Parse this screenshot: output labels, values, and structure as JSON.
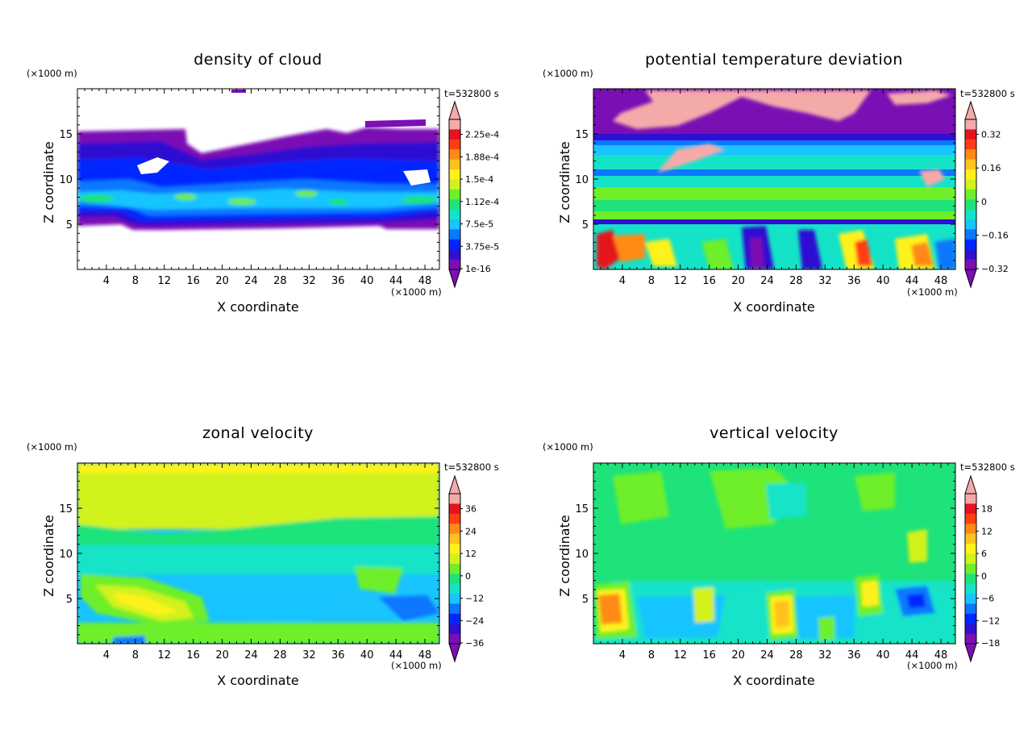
{
  "colors": {
    "axis": "#000000",
    "scale": [
      "#7a0fb4",
      "#2f0fd2",
      "#0026ff",
      "#0a77ff",
      "#19c4ff",
      "#14e3c8",
      "#1ee37a",
      "#6eef2a",
      "#d2f21e",
      "#fff21a",
      "#ffc21e",
      "#ff8a14",
      "#ff3c14",
      "#e4141e",
      "#f5aaaa"
    ]
  },
  "chart_data": [
    {
      "type": "heatmap",
      "title": "density of cloud",
      "xlabel": "X coordinate",
      "ylabel": "Z coordinate",
      "x_unit": "(×1000 m)",
      "y_unit": "(×1000 m)",
      "time_label": "t=532800 s",
      "xlim": [
        0,
        50
      ],
      "ylim": [
        0,
        20
      ],
      "x_ticks": [
        4,
        8,
        12,
        16,
        20,
        24,
        28,
        32,
        36,
        40,
        44,
        48
      ],
      "y_ticks": [
        5,
        10,
        15
      ],
      "colorbar_labels": [
        "2.25e-4",
        "1.88e-4",
        "1.5e-4",
        "1.12e-4",
        "7.5e-5",
        "3.75e-5",
        "1e-16"
      ],
      "field": "cloud"
    },
    {
      "type": "heatmap",
      "title": "potential temperature deviation",
      "xlabel": "X coordinate",
      "ylabel": "Z coordinate",
      "x_unit": "(×1000 m)",
      "y_unit": "(×1000 m)",
      "time_label": "t=532800 s",
      "xlim": [
        0,
        50
      ],
      "ylim": [
        0,
        20
      ],
      "x_ticks": [
        4,
        8,
        12,
        16,
        20,
        24,
        28,
        32,
        36,
        40,
        44,
        48
      ],
      "y_ticks": [
        5,
        10,
        15
      ],
      "colorbar_labels": [
        "0.32",
        "0.16",
        "0",
        "−0.16",
        "−0.32"
      ],
      "field": "theta"
    },
    {
      "type": "heatmap",
      "title": "zonal velocity",
      "xlabel": "X coordinate",
      "ylabel": "Z coordinate",
      "x_unit": "(×1000 m)",
      "y_unit": "(×1000 m)",
      "time_label": "t=532800 s",
      "xlim": [
        0,
        50
      ],
      "ylim": [
        0,
        20
      ],
      "x_ticks": [
        4,
        8,
        12,
        16,
        20,
        24,
        28,
        32,
        36,
        40,
        44,
        48
      ],
      "y_ticks": [
        5,
        10,
        15
      ],
      "colorbar_labels": [
        "36",
        "24",
        "12",
        "0",
        "−12",
        "−24",
        "−36"
      ],
      "field": "u"
    },
    {
      "type": "heatmap",
      "title": "vertical velocity",
      "xlabel": "X coordinate",
      "ylabel": "Z coordinate",
      "x_unit": "(×1000 m)",
      "y_unit": "(×1000 m)",
      "time_label": "t=532800 s",
      "xlim": [
        0,
        50
      ],
      "ylim": [
        0,
        20
      ],
      "x_ticks": [
        4,
        8,
        12,
        16,
        20,
        24,
        28,
        32,
        36,
        40,
        44,
        48
      ],
      "y_ticks": [
        5,
        10,
        15
      ],
      "colorbar_labels": [
        "18",
        "12",
        "6",
        "0",
        "−6",
        "−12",
        "−18"
      ],
      "field": "w"
    }
  ]
}
